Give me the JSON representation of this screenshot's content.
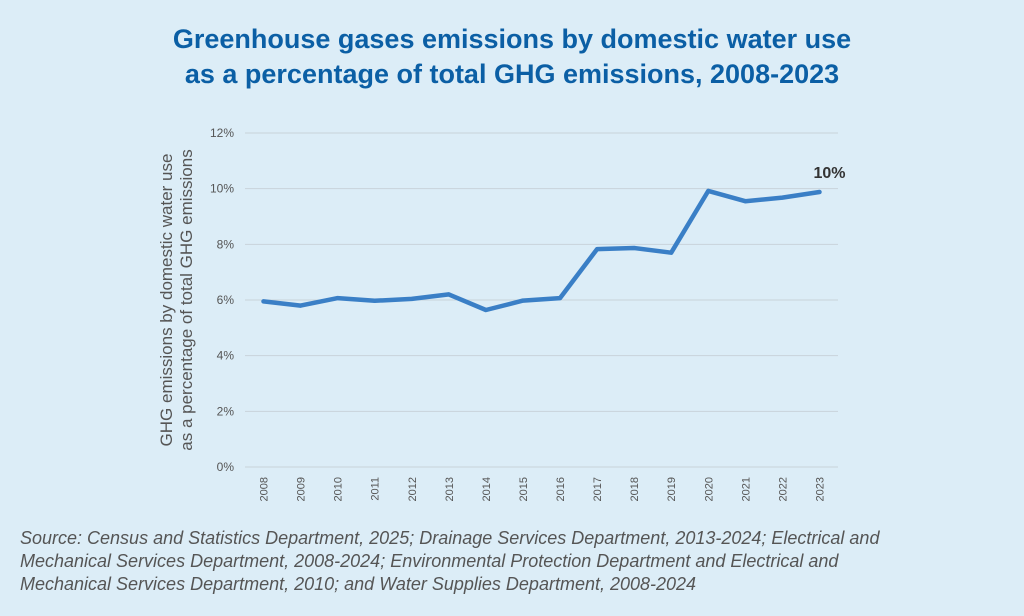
{
  "title": {
    "line1": "Greenhouse gases emissions by domestic water use",
    "line2": "as a percentage of total GHG emissions, 2008-2023"
  },
  "source": {
    "line1": "Source: Census and Statistics Department, 2025; Drainage Services Department, 2013-2024; Electrical and",
    "line2": "Mechanical Services Department, 2008-2024; Environmental Protection Department and Electrical and",
    "line3": "Mechanical Services Department, 2010; and Water Supplies Department, 2008-2024"
  },
  "colors": {
    "background": "#dcedf7",
    "title": "#0b5fa5",
    "line": "#3a7fc6",
    "grid": "#c9d3da",
    "axis_text": "#555555"
  },
  "chart_data": {
    "type": "line",
    "title": "Greenhouse gases emissions by domestic water use as a percentage of total GHG emissions, 2008-2023",
    "xlabel": "",
    "ylabel_lines": [
      "GHG emissions by domestic water use",
      "as a percentage of total GHG emissions"
    ],
    "categories": [
      "2008",
      "2009",
      "2010",
      "2011",
      "2012",
      "2013",
      "2014",
      "2015",
      "2016",
      "2017",
      "2018",
      "2019",
      "2020",
      "2021",
      "2022",
      "2023"
    ],
    "series": [
      {
        "values": [
          5.95,
          5.8,
          6.07,
          5.97,
          6.04,
          6.2,
          5.64,
          5.98,
          6.07,
          7.83,
          7.87,
          7.7,
          9.92,
          9.55,
          9.68,
          9.88
        ]
      }
    ],
    "ylim": [
      0,
      12
    ],
    "yticks": [
      0,
      2,
      4,
      6,
      8,
      10,
      12
    ],
    "ytick_labels": [
      "0%",
      "2%",
      "4%",
      "6%",
      "8%",
      "10%",
      "12%"
    ],
    "grid": true,
    "legend": "none",
    "annotations": [
      {
        "category": "2023",
        "text": "10%"
      }
    ]
  }
}
